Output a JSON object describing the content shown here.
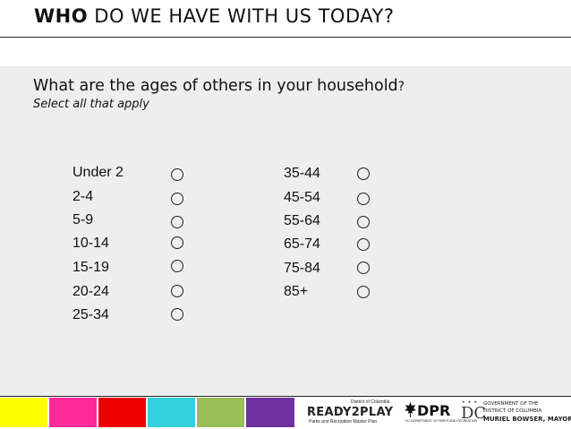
{
  "header": {
    "title_bold": "WHO",
    "title_rest": " DO WE HAVE WITH US TODAY?"
  },
  "question": {
    "text": "What are the ages of others in your household",
    "qmark": "?",
    "instruction": "Select all that apply"
  },
  "options": {
    "left": [
      "Under 2",
      "2-4",
      "5-9",
      "10-14",
      "15-19",
      "20-24",
      "25-34"
    ],
    "right": [
      "35-44",
      "45-54",
      "55-64",
      "65-74",
      "75-84",
      "85+"
    ]
  },
  "footer": {
    "swatch_colors": [
      "#ffff00",
      "#ff2a9a",
      "#ee0000",
      "#33d1dd",
      "#99bf59",
      "#7030a0"
    ],
    "ready2play_small": "District of Columbia",
    "ready2play_main": "READY2PLAY",
    "ready2play_sub": "Parks and Recreation Master Plan",
    "dpr_text": "DPR",
    "dpr_sub": "DC DEPARTMENT OF PARKS AND RECREATION",
    "dc_mark": "DC",
    "gov_line1": "GOVERNMENT OF THE",
    "gov_line2": "DISTRICT OF COLUMBIA",
    "gov_line3": "MURIEL BOWSER, MAYOR"
  }
}
